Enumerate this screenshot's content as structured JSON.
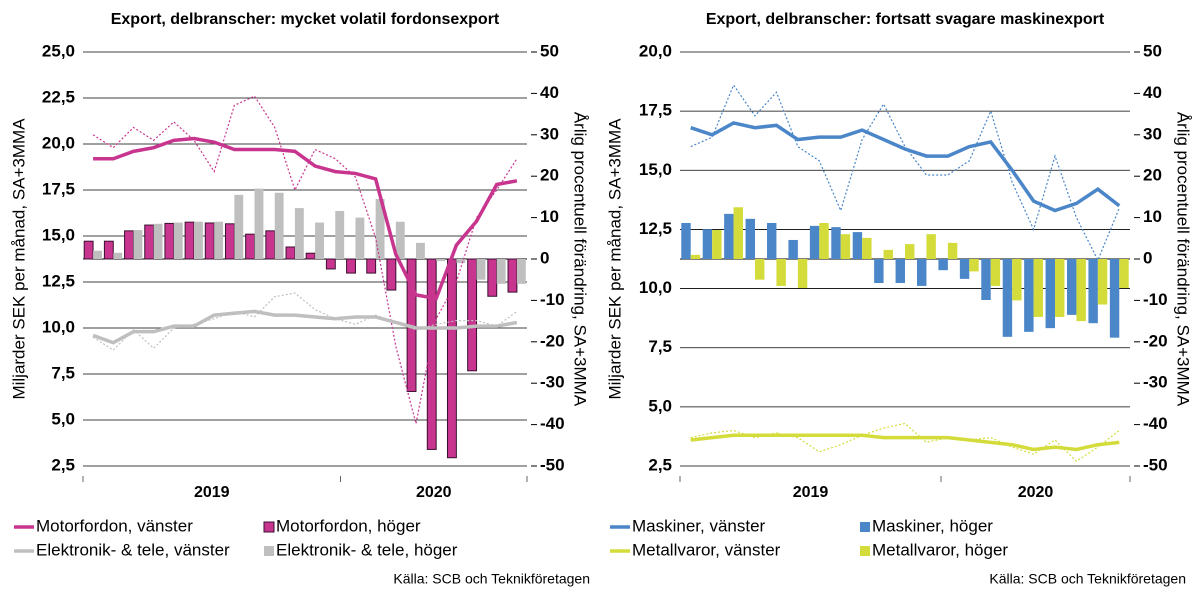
{
  "chart_data": [
    {
      "type": "combo",
      "title": "Export, delbranscher: mycket volatil fordonsexport",
      "y_label": "Miljarder SEK per månad, SA+3MMA",
      "y2_label": "Årlig procentuell förändring, SA+3MMA",
      "year_labels": [
        "2019",
        "2020"
      ],
      "source": "Källa: SCB och Teknikföretagen",
      "categories": [
        null,
        null,
        null,
        null,
        null,
        null,
        null,
        null,
        null,
        null,
        null,
        null,
        null,
        null,
        null,
        null,
        null,
        null,
        null,
        null,
        null,
        null
      ],
      "ylim": [
        2.5,
        25
      ],
      "yticks": [
        {
          "value": 2.5,
          "label": "2,5"
        },
        {
          "value": 5,
          "label": "5,0"
        },
        {
          "value": 7.5,
          "label": "7,5"
        },
        {
          "value": 10,
          "label": "10,0"
        },
        {
          "value": 12.5,
          "label": "12,5"
        },
        {
          "value": 15,
          "label": "15,0"
        },
        {
          "value": 17.5,
          "label": "17,5"
        },
        {
          "value": 20,
          "label": "20,0"
        },
        {
          "value": 22.5,
          "label": "22,5"
        },
        {
          "value": 25,
          "label": "25,0"
        }
      ],
      "y2lim": [
        -50,
        50
      ],
      "y2ticks": [
        -50,
        -40,
        -30,
        -20,
        -10,
        0,
        10,
        20,
        30,
        40,
        50
      ],
      "grid": true,
      "series": [
        {
          "name": "Motorfordon, vänster",
          "kind": "line",
          "color": "#c8358f",
          "values": [
            19.2,
            19.2,
            19.6,
            19.8,
            20.2,
            20.3,
            20.1,
            19.7,
            19.7,
            19.7,
            19.6,
            18.8,
            18.5,
            18.4,
            18.1,
            14.0,
            11.8,
            11.6,
            14.5,
            15.8,
            17.8,
            18.0
          ]
        },
        {
          "name": "Motorfordon, höger",
          "kind": "bar",
          "axis": "y2",
          "color": "#c8358f",
          "stroke": "#3a1030",
          "values": [
            4.3,
            4.3,
            6.8,
            8.2,
            8.6,
            8.9,
            8.7,
            8.5,
            6.0,
            6.8,
            2.9,
            1.4,
            -2.4,
            -3.4,
            -3.4,
            -7.5,
            -32,
            -46,
            -48,
            -27,
            -9,
            -8
          ]
        },
        {
          "name": "Elektronik- & tele, vänster",
          "kind": "line",
          "color": "#bfbfbf",
          "values": [
            9.6,
            9.2,
            9.8,
            9.8,
            10.1,
            10.1,
            10.7,
            10.8,
            10.9,
            10.7,
            10.7,
            10.6,
            10.5,
            10.6,
            10.6,
            10.3,
            10.0,
            10.0,
            10.0,
            10.1,
            10.1,
            10.3
          ]
        },
        {
          "name": "Elektronik- & tele, höger",
          "kind": "bar",
          "axis": "y2",
          "color": "#bfbfbf",
          "values": [
            2.0,
            1.5,
            7.0,
            8.5,
            8.8,
            9.0,
            9.0,
            15.5,
            17.0,
            16.0,
            12.3,
            8.8,
            11.6,
            10.0,
            14.5,
            9.0,
            3.9,
            -0.5,
            -1.0,
            -5.0,
            -6.0,
            -6.0
          ]
        },
        {
          "kind": "dotted",
          "color": "#c8358f",
          "values": [
            20.5,
            19.8,
            20.9,
            20.2,
            21.2,
            20.2,
            18.5,
            22.1,
            22.6,
            20.9,
            17.5,
            19.7,
            19.2,
            18.2,
            14.9,
            9.0,
            4.8,
            10.5,
            12.5,
            16.0,
            17.5,
            19.2
          ]
        },
        {
          "kind": "dotted",
          "color": "#bfbfbf",
          "values": [
            9.5,
            8.8,
            9.9,
            8.9,
            10.0,
            10.2,
            10.5,
            10.9,
            10.6,
            11.7,
            11.9,
            11.0,
            10.5,
            10.2,
            10.7,
            10.3,
            9.9,
            10.2,
            10.4,
            10.4,
            10.1,
            10.9
          ]
        }
      ]
    },
    {
      "type": "combo",
      "title": "Export, delbranscher: fortsatt svagare maskinexport",
      "y_label": "Miljarder SEK per månad, SA+3MMA",
      "y2_label": "Årlig procentuell förändring, SA+3MMA",
      "year_labels": [
        "2019",
        "2020"
      ],
      "source": "Källa: SCB och Teknikföretagen",
      "categories": [
        null,
        null,
        null,
        null,
        null,
        null,
        null,
        null,
        null,
        null,
        null,
        null,
        null,
        null,
        null,
        null,
        null,
        null,
        null,
        null,
        null
      ],
      "ylim": [
        2.5,
        20
      ],
      "yticks": [
        {
          "value": 2.5,
          "label": "2,5"
        },
        {
          "value": 5,
          "label": "5,0"
        },
        {
          "value": 7.5,
          "label": "7,5"
        },
        {
          "value": 10,
          "label": "10,0"
        },
        {
          "value": 12.5,
          "label": "12,5"
        },
        {
          "value": 15,
          "label": "15,0"
        },
        {
          "value": 17.5,
          "label": "17,5"
        },
        {
          "value": 20,
          "label": "20,0"
        }
      ],
      "y2lim": [
        -50,
        50
      ],
      "y2ticks": [
        -50,
        -40,
        -30,
        -20,
        -10,
        0,
        10,
        20,
        30,
        40,
        50
      ],
      "grid": true,
      "series": [
        {
          "name": "Maskiner, vänster",
          "kind": "line",
          "color": "#4a86c8",
          "values": [
            16.8,
            16.5,
            17.0,
            16.8,
            16.9,
            16.3,
            16.4,
            16.4,
            16.7,
            16.3,
            15.9,
            15.6,
            15.6,
            16.0,
            16.2,
            15.0,
            13.7,
            13.3,
            13.6,
            14.2,
            13.5
          ]
        },
        {
          "name": "Maskiner, höger",
          "kind": "bar",
          "axis": "y2",
          "color": "#4a86c8",
          "values": [
            8.7,
            7.2,
            10.9,
            9.7,
            8.7,
            4.6,
            8.0,
            7.7,
            6.5,
            -5.8,
            -5.8,
            -6.5,
            -2.7,
            -4.8,
            -9.9,
            -18.8,
            -17.6,
            -16.7,
            -13.5,
            -15.5,
            -19
          ]
        },
        {
          "name": "Metallvaror, vänster",
          "kind": "line",
          "color": "#d4dc3c",
          "values": [
            3.6,
            3.7,
            3.8,
            3.8,
            3.8,
            3.8,
            3.8,
            3.8,
            3.8,
            3.7,
            3.7,
            3.7,
            3.7,
            3.6,
            3.5,
            3.4,
            3.2,
            3.3,
            3.2,
            3.4,
            3.5
          ]
        },
        {
          "name": "Metallvaror, höger",
          "kind": "bar",
          "axis": "y2",
          "color": "#d4dc3c",
          "values": [
            1.0,
            7.0,
            12.5,
            -5.0,
            -6.5,
            -7.0,
            8.7,
            6.0,
            5.1,
            2.2,
            3.6,
            6.0,
            3.9,
            -3.0,
            -6.5,
            -10,
            -14,
            -14,
            -15,
            -11,
            -7
          ]
        },
        {
          "kind": "dotted",
          "color": "#4a86c8",
          "values": [
            16.0,
            16.4,
            18.6,
            17.3,
            18.3,
            16.0,
            15.4,
            13.3,
            16.3,
            17.8,
            16.0,
            14.8,
            14.8,
            15.4,
            17.5,
            14.5,
            12.5,
            15.6,
            13.0,
            11.2,
            13.4
          ]
        },
        {
          "kind": "dotted",
          "color": "#d4dc3c",
          "values": [
            3.7,
            3.9,
            4.0,
            3.7,
            3.9,
            3.7,
            3.1,
            3.4,
            3.8,
            4.1,
            4.3,
            3.5,
            3.7,
            3.6,
            3.7,
            3.3,
            3.0,
            3.6,
            2.7,
            3.3,
            4.0
          ]
        }
      ]
    }
  ]
}
